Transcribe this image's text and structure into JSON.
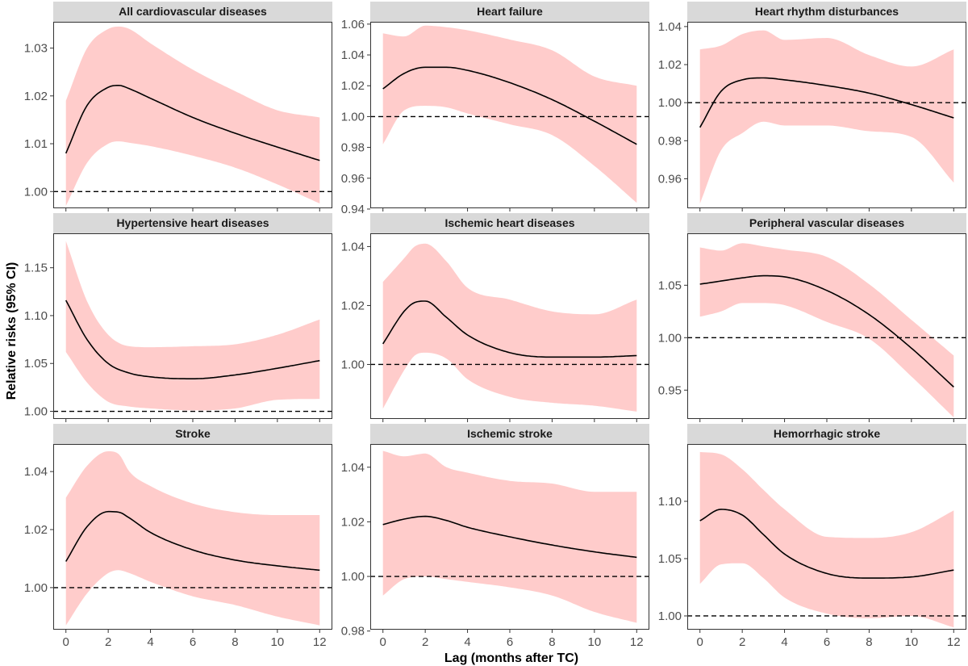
{
  "figure": {
    "ylabel": "Relative risks (95% CI)",
    "xlabel": "Lag (months after TC)"
  },
  "colors": {
    "ci_band": "#ffcccb",
    "line": "#000000",
    "reference": "#000000",
    "strip_bg": "#d9d9d9",
    "panel_border": "#333333"
  },
  "chart_data": [
    {
      "type": "line",
      "title": "All cardiovascular diseases",
      "x": [
        0,
        1,
        2,
        2.5,
        3,
        4,
        6,
        8,
        10,
        12
      ],
      "series": [
        {
          "values": [
            1.008,
            1.018,
            1.0218,
            1.0222,
            1.0215,
            1.0195,
            1.0155,
            1.0122,
            1.0093,
            1.0065
          ]
        }
      ],
      "ci_lower": [
        0.997,
        1.006,
        1.01,
        1.0105,
        1.0102,
        1.0095,
        1.0075,
        1.005,
        1.0015,
        0.9975
      ],
      "ci_upper": [
        1.019,
        1.03,
        1.034,
        1.0345,
        1.034,
        1.031,
        1.0255,
        1.021,
        1.017,
        1.0155
      ],
      "ylim": [
        0.9965,
        1.0355
      ],
      "yticks": [
        1.0,
        1.01,
        1.02,
        1.03
      ],
      "ytick_labels": [
        "1.00",
        "1.01",
        "1.02",
        "1.03"
      ],
      "reference": 1.0
    },
    {
      "type": "line",
      "title": "Heart failure",
      "x": [
        0,
        1,
        2,
        3,
        4,
        6,
        8,
        10,
        12
      ],
      "series": [
        {
          "values": [
            1.018,
            1.028,
            1.032,
            1.032,
            1.03,
            1.022,
            1.011,
            0.997,
            0.982
          ]
        }
      ],
      "ci_lower": [
        0.982,
        1.004,
        1.007,
        1.006,
        1.002,
        0.995,
        0.988,
        0.968,
        0.944
      ],
      "ci_upper": [
        1.054,
        1.052,
        1.059,
        1.058,
        1.056,
        1.05,
        1.043,
        1.026,
        1.02
      ],
      "ylim": [
        0.9405,
        1.0615
      ],
      "yticks": [
        0.94,
        0.96,
        0.98,
        1.0,
        1.02,
        1.04,
        1.06
      ],
      "ytick_labels": [
        "0.94",
        "0.96",
        "0.98",
        "1.00",
        "1.02",
        "1.04",
        "1.06"
      ],
      "reference": 1.0
    },
    {
      "type": "line",
      "title": "Heart rhythm disturbances",
      "x": [
        0,
        1,
        2,
        3,
        4,
        6,
        8,
        10,
        12
      ],
      "series": [
        {
          "values": [
            0.987,
            1.006,
            1.012,
            1.013,
            1.012,
            1.009,
            1.005,
            0.999,
            0.992
          ]
        }
      ],
      "ci_lower": [
        0.947,
        0.975,
        0.984,
        0.99,
        0.988,
        0.988,
        0.985,
        0.982,
        0.958
      ],
      "ci_upper": [
        1.028,
        1.03,
        1.036,
        1.038,
        1.033,
        1.034,
        1.025,
        1.019,
        1.028
      ],
      "ylim": [
        0.9445,
        1.0425
      ],
      "yticks": [
        0.96,
        0.98,
        1.0,
        1.02,
        1.04
      ],
      "ytick_labels": [
        "0.96",
        "0.98",
        "1.00",
        "1.02",
        "1.04"
      ],
      "reference": 1.0
    },
    {
      "type": "line",
      "title": "Hypertensive heart diseases",
      "x": [
        0,
        1,
        2,
        3,
        4,
        6,
        8,
        10,
        12
      ],
      "series": [
        {
          "values": [
            1.116,
            1.075,
            1.05,
            1.04,
            1.036,
            1.034,
            1.038,
            1.045,
            1.053
          ]
        }
      ],
      "ci_lower": [
        1.062,
        1.03,
        1.01,
        1.005,
        1.003,
        1.001,
        1.003,
        1.012,
        1.013
      ],
      "ci_upper": [
        1.178,
        1.115,
        1.08,
        1.068,
        1.067,
        1.068,
        1.07,
        1.08,
        1.096
      ],
      "ylim": [
        0.992,
        1.186
      ],
      "yticks": [
        1.0,
        1.05,
        1.1,
        1.15
      ],
      "ytick_labels": [
        "1.00",
        "1.05",
        "1.10",
        "1.15"
      ],
      "reference": 1.0
    },
    {
      "type": "line",
      "title": "Ischemic heart diseases",
      "x": [
        0,
        1,
        1.5,
        2,
        3,
        4,
        6,
        8,
        10,
        12
      ],
      "series": [
        {
          "values": [
            1.007,
            1.018,
            1.021,
            1.0215,
            1.016,
            1.01,
            1.004,
            1.0025,
            1.0025,
            1.003
          ]
        }
      ],
      "ci_lower": [
        0.985,
        0.998,
        1.003,
        1.004,
        1.002,
        0.995,
        0.989,
        0.987,
        0.986,
        0.984
      ],
      "ci_upper": [
        1.028,
        1.036,
        1.04,
        1.041,
        1.035,
        1.026,
        1.022,
        1.018,
        1.017,
        1.022
      ],
      "ylim": [
        0.9815,
        1.0445
      ],
      "yticks": [
        1.0,
        1.02,
        1.04
      ],
      "ytick_labels": [
        "1.00",
        "1.02",
        "1.04"
      ],
      "reference": 1.0
    },
    {
      "type": "line",
      "title": "Peripheral vascular diseases",
      "x": [
        0,
        1,
        2,
        3,
        4,
        6,
        8,
        10,
        12
      ],
      "series": [
        {
          "values": [
            1.051,
            1.054,
            1.057,
            1.059,
            1.058,
            1.045,
            1.022,
            0.99,
            0.953
          ]
        }
      ],
      "ci_lower": [
        1.02,
        1.025,
        1.033,
        1.033,
        1.031,
        1.015,
        0.999,
        0.963,
        0.924
      ],
      "ci_upper": [
        1.086,
        1.083,
        1.09,
        1.087,
        1.084,
        1.077,
        1.051,
        1.017,
        0.983
      ],
      "ylim": [
        0.9225,
        1.0995
      ],
      "yticks": [
        0.95,
        1.0,
        1.05
      ],
      "ytick_labels": [
        "0.95",
        "1.00",
        "1.05"
      ],
      "reference": 1.0
    },
    {
      "type": "line",
      "title": "Stroke",
      "x": [
        0,
        1,
        2,
        2.5,
        3,
        4,
        6,
        8,
        10,
        12
      ],
      "series": [
        {
          "values": [
            1.009,
            1.021,
            1.0262,
            1.026,
            1.024,
            1.019,
            1.013,
            1.0095,
            1.0075,
            1.006
          ]
        }
      ],
      "ci_lower": [
        0.987,
        0.998,
        1.005,
        1.006,
        1.005,
        1.002,
        0.997,
        0.994,
        0.99,
        0.987
      ],
      "ci_upper": [
        1.031,
        1.042,
        1.047,
        1.046,
        1.04,
        1.035,
        1.029,
        1.026,
        1.025,
        1.025
      ],
      "ylim": [
        0.9855,
        1.0495
      ],
      "yticks": [
        1.0,
        1.02,
        1.04
      ],
      "ytick_labels": [
        "1.00",
        "1.02",
        "1.04"
      ],
      "reference": 1.0
    },
    {
      "type": "line",
      "title": "Ischemic stroke",
      "x": [
        0,
        1,
        2,
        3,
        4,
        6,
        8,
        10,
        12
      ],
      "series": [
        {
          "values": [
            1.019,
            1.021,
            1.022,
            1.0205,
            1.018,
            1.0145,
            1.0115,
            1.009,
            1.007
          ]
        }
      ],
      "ci_lower": [
        0.993,
        0.999,
        1.0,
        0.999,
        0.998,
        0.996,
        0.993,
        0.987,
        0.983
      ],
      "ci_upper": [
        1.046,
        1.044,
        1.045,
        1.04,
        1.038,
        1.035,
        1.034,
        1.031,
        1.031
      ],
      "ylim": [
        0.9805,
        1.0485
      ],
      "yticks": [
        0.98,
        1.0,
        1.02,
        1.04
      ],
      "ytick_labels": [
        "0.98",
        "1.00",
        "1.02",
        "1.04"
      ],
      "reference": 1.0
    },
    {
      "type": "line",
      "title": "Hemorrhagic stroke",
      "x": [
        0,
        1,
        2,
        3,
        4,
        6,
        8,
        10,
        12
      ],
      "series": [
        {
          "values": [
            1.083,
            1.093,
            1.088,
            1.071,
            1.054,
            1.037,
            1.033,
            1.034,
            1.04
          ]
        }
      ],
      "ci_lower": [
        1.028,
        1.045,
        1.046,
        1.033,
        1.016,
        1.002,
        0.998,
        1.0,
        0.99
      ],
      "ci_upper": [
        1.143,
        1.141,
        1.128,
        1.11,
        1.093,
        1.069,
        1.068,
        1.073,
        1.092
      ],
      "ylim": [
        0.988,
        1.15
      ],
      "yticks": [
        1.0,
        1.05,
        1.1
      ],
      "ytick_labels": [
        "1.00",
        "1.05",
        "1.10"
      ],
      "reference": 1.0
    }
  ],
  "x_axis": {
    "xlim": [
      -0.6,
      12.6
    ],
    "ticks": [
      0,
      2,
      4,
      6,
      8,
      10,
      12
    ],
    "tick_labels": [
      "0",
      "2",
      "4",
      "6",
      "8",
      "10",
      "12"
    ]
  }
}
